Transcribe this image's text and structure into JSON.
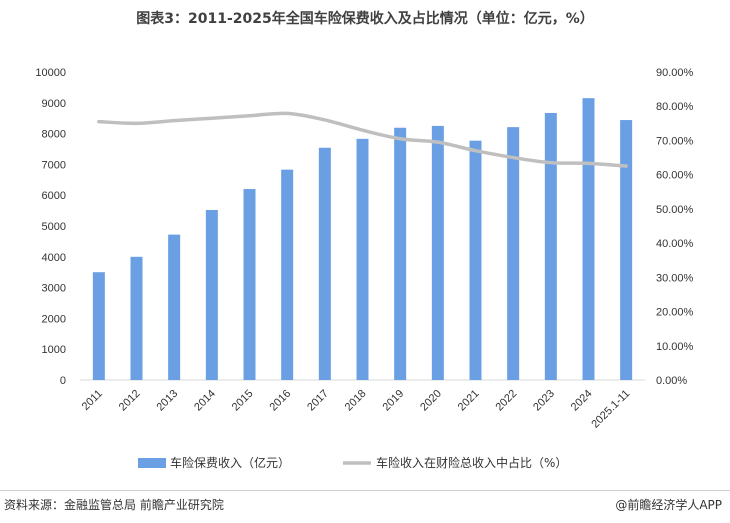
{
  "title": "图表3：2011-2025年全国车险保费收入及占比情况（单位：亿元，%）",
  "footer": {
    "source": "资料来源：金融监管总局 前瞻产业研究院",
    "brand": "@前瞻经济学人APP"
  },
  "colors": {
    "bar": "#6a9fe3",
    "line": "#bfbfbf",
    "axis_text": "#333333"
  },
  "chart_data": {
    "type": "bar",
    "categories": [
      "2011",
      "2012",
      "2013",
      "2014",
      "2015",
      "2016",
      "2017",
      "2018",
      "2019",
      "2020",
      "2021",
      "2022",
      "2023",
      "2024",
      "2025.1-11"
    ],
    "series": [
      {
        "name": "车险保费收入（亿元）",
        "type": "bar",
        "axis": "left",
        "values": [
          3500,
          4000,
          4720,
          5520,
          6200,
          6830,
          7540,
          7830,
          8190,
          8250,
          7770,
          8210,
          8670,
          9150,
          8440
        ]
      },
      {
        "name": "车险收入在财险总收入中占比（%）",
        "type": "line",
        "axis": "right",
        "values": [
          75.5,
          75.0,
          75.8,
          76.5,
          77.2,
          77.9,
          76.0,
          73.0,
          70.5,
          69.5,
          67.0,
          65.0,
          63.5,
          63.3,
          62.5
        ]
      }
    ],
    "ylim_left": [
      0,
      10000
    ],
    "yticks_left": [
      "0",
      "1000",
      "2000",
      "3000",
      "4000",
      "5000",
      "6000",
      "7000",
      "8000",
      "9000",
      "10000"
    ],
    "ylim_right": [
      0,
      90
    ],
    "yticks_right": [
      "0.00%",
      "10.00%",
      "20.00%",
      "30.00%",
      "40.00%",
      "50.00%",
      "60.00%",
      "70.00%",
      "80.00%",
      "90.00%"
    ],
    "legend_position": "bottom",
    "grid": false
  }
}
